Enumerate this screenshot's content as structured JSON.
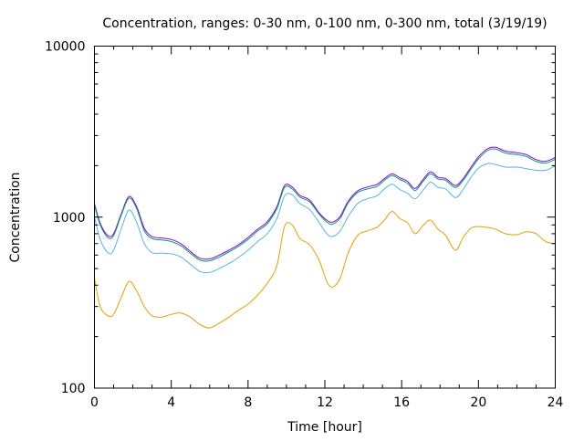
{
  "chart_data": {
    "type": "line",
    "title": "Concentration, ranges: 0-30 nm, 0-100 nm, 0-300 nm, total (3/19/19)",
    "xlabel": "Time [hour]",
    "ylabel": "Concentration",
    "xlim": [
      0,
      24
    ],
    "ylim": [
      100,
      10000
    ],
    "yscale": "log",
    "xticks": [
      0,
      4,
      8,
      12,
      16,
      20,
      24
    ],
    "xtick_labels": [
      "0",
      "4",
      "8",
      "12",
      "16",
      "20",
      "24"
    ],
    "yticks": [
      100,
      1000,
      10000
    ],
    "ytick_labels": [
      "100",
      "1000",
      "10000"
    ],
    "grid": false,
    "legend": "none",
    "x": [
      0,
      0.3,
      0.7,
      1.0,
      1.4,
      1.8,
      2.2,
      2.6,
      3.0,
      3.5,
      4.0,
      4.5,
      5.0,
      5.5,
      6.0,
      6.5,
      7.0,
      7.5,
      8.0,
      8.5,
      9.0,
      9.5,
      9.9,
      10.3,
      10.7,
      11.2,
      11.7,
      12.1,
      12.4,
      12.8,
      13.2,
      13.7,
      14.2,
      14.7,
      15.1,
      15.5,
      15.9,
      16.3,
      16.7,
      17.1,
      17.5,
      17.9,
      18.3,
      18.8,
      19.2,
      19.6,
      20.0,
      20.5,
      20.9,
      21.4,
      22.0,
      22.5,
      23.0,
      23.5,
      24.0
    ],
    "series": [
      {
        "name": "total",
        "color": "#9400d3",
        "values": [
          1200,
          920,
          780,
          800,
          1050,
          1320,
          1150,
          860,
          770,
          755,
          740,
          700,
          630,
          575,
          570,
          600,
          640,
          690,
          760,
          850,
          940,
          1150,
          1530,
          1500,
          1340,
          1260,
          1060,
          960,
          935,
          1010,
          1230,
          1420,
          1500,
          1550,
          1680,
          1790,
          1700,
          1620,
          1470,
          1650,
          1840,
          1710,
          1680,
          1530,
          1680,
          1950,
          2250,
          2520,
          2560,
          2430,
          2380,
          2320,
          2170,
          2120,
          2230
        ]
      },
      {
        "name": "0-300 nm",
        "color": "#009e73",
        "values": [
          1170,
          900,
          760,
          780,
          1030,
          1290,
          1120,
          830,
          750,
          735,
          720,
          680,
          615,
          560,
          555,
          585,
          625,
          675,
          740,
          830,
          915,
          1120,
          1490,
          1460,
          1310,
          1230,
          1040,
          935,
          910,
          985,
          1200,
          1390,
          1460,
          1510,
          1640,
          1750,
          1660,
          1580,
          1430,
          1610,
          1790,
          1670,
          1640,
          1490,
          1640,
          1900,
          2190,
          2460,
          2500,
          2370,
          2320,
          2260,
          2120,
          2070,
          2180
        ]
      },
      {
        "name": "0-100 nm",
        "color": "#56b4e9",
        "values": [
          1000,
          740,
          620,
          640,
          860,
          1100,
          930,
          700,
          620,
          615,
          610,
          585,
          530,
          480,
          475,
          500,
          535,
          580,
          640,
          720,
          800,
          980,
          1330,
          1350,
          1200,
          1110,
          930,
          800,
          770,
          830,
          1000,
          1200,
          1280,
          1330,
          1460,
          1560,
          1450,
          1380,
          1280,
          1430,
          1600,
          1490,
          1460,
          1300,
          1450,
          1700,
          1930,
          2060,
          2030,
          1960,
          1960,
          1920,
          1880,
          1880,
          1990
        ]
      },
      {
        "name": "0-30 nm",
        "color": "#e69f00",
        "values": [
          440,
          300,
          265,
          270,
          340,
          420,
          370,
          300,
          265,
          260,
          270,
          275,
          260,
          235,
          225,
          240,
          260,
          285,
          310,
          350,
          410,
          520,
          880,
          900,
          750,
          690,
          560,
          420,
          390,
          440,
          610,
          780,
          830,
          870,
          960,
          1080,
          980,
          930,
          800,
          890,
          960,
          850,
          780,
          640,
          760,
          860,
          880,
          870,
          850,
          800,
          790,
          820,
          800,
          720,
          700
        ]
      }
    ]
  }
}
